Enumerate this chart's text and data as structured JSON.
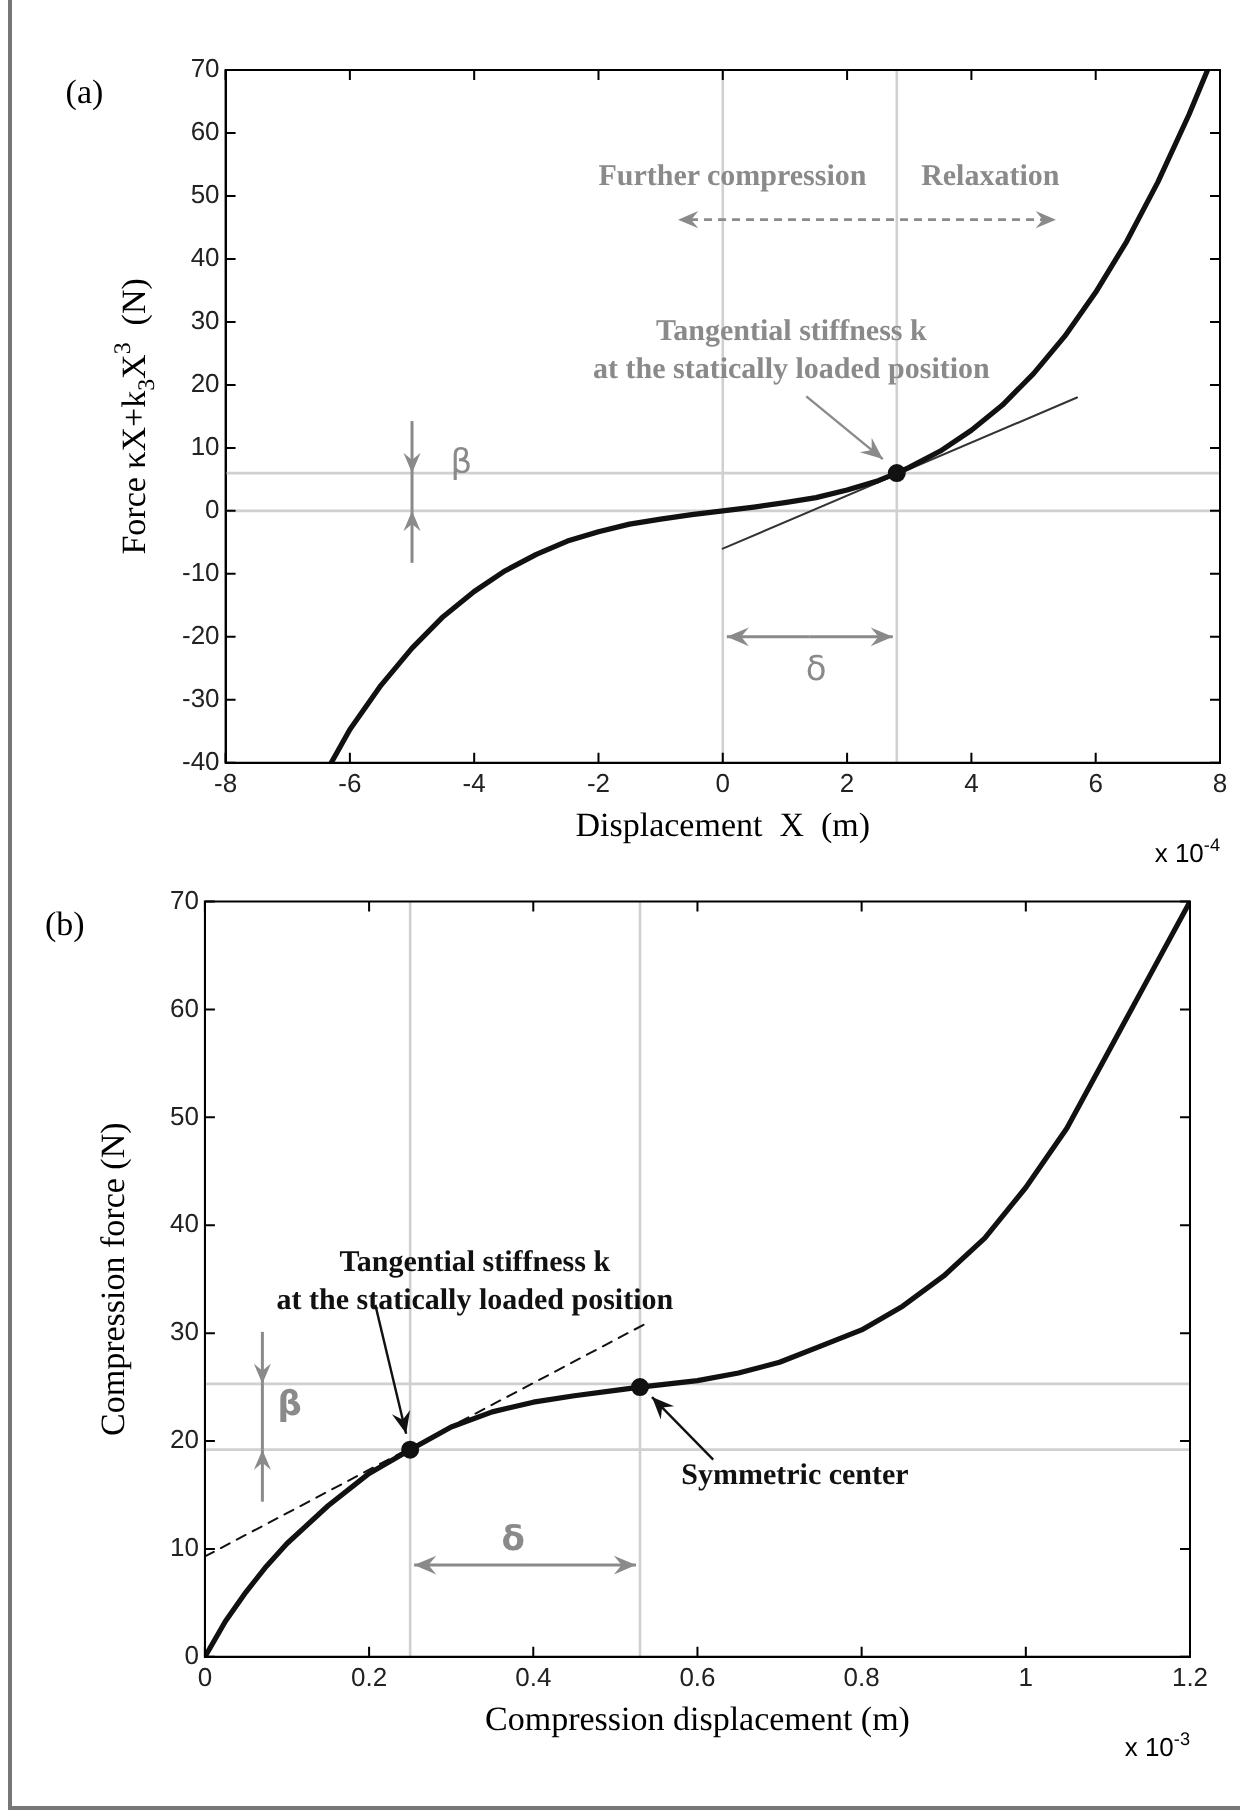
{
  "chart_data": [
    {
      "type": "line",
      "title": "(a)",
      "xlabel": "Displacement  X  (m)",
      "ylabel": "Force κX+k$_{3}$X$^{3}$  (N)",
      "xlim": [
        -8,
        8
      ],
      "ylim": [
        -40,
        70
      ],
      "xticks": [
        -8,
        -6,
        -4,
        -2,
        0,
        2,
        4,
        6,
        8
      ],
      "yticks": [
        -40,
        -30,
        -20,
        -10,
        0,
        10,
        20,
        30,
        40,
        50,
        60,
        70
      ],
      "series": [
        {
          "type": "line",
          "color": "#111111",
          "marker": "none",
          "x": [
            -6.3,
            -6,
            -5.5,
            -5,
            -4.5,
            -4,
            -3.5,
            -3,
            -2.5,
            -2,
            -1.5,
            -1,
            -0.5,
            0,
            0.5,
            1,
            1.5,
            2,
            2.5,
            2.8,
            3,
            3.5,
            4,
            4.5,
            5,
            5.5,
            6,
            6.5,
            7,
            7.5,
            7.8
          ],
          "values": [
            -40,
            -34.7,
            -27.7,
            -21.8,
            -16.8,
            -12.8,
            -9.5,
            -6.9,
            -4.8,
            -3.3,
            -2.1,
            -1.3,
            -0.6,
            0,
            0.6,
            1.3,
            2.1,
            3.3,
            4.8,
            6,
            6.9,
            9.5,
            12.8,
            16.8,
            21.8,
            27.7,
            34.7,
            42.8,
            52.2,
            62.9,
            70
          ]
        },
        {
          "type": "line",
          "color": "#333333",
          "marker": "none",
          "x": [
            0,
            5.7
          ],
          "values": [
            -6,
            18
          ]
        },
        {
          "type": "scatter",
          "marker": "circle",
          "color": "#111111",
          "x": [
            2.8
          ],
          "values": [
            6
          ]
        }
      ],
      "ref_lines": [
        {
          "axis": "y",
          "value": 6,
          "color": "#d0d0d0"
        },
        {
          "axis": "y",
          "value": 0,
          "color": "#d0d0d0"
        },
        {
          "axis": "x",
          "value": 0,
          "color": "#d0d0d0"
        },
        {
          "axis": "x",
          "value": 2.8,
          "color": "#d0d0d0"
        }
      ],
      "annotations": [
        {
          "text": "β",
          "x": -5,
          "y": 6
        },
        {
          "text": "δ",
          "x": 2.8,
          "y": -20
        },
        "Further compression",
        "Relaxation",
        {
          "text": "Tangential stiffness k\nat the statically loaded position",
          "x": 2.8,
          "y": 6
        },
        "x 10$^{-4}$"
      ]
    },
    {
      "type": "line",
      "title": "(b)",
      "xlabel": "Compression displacement (m)",
      "ylabel": "Compression force (N)",
      "xlim": [
        0,
        1.2
      ],
      "ylim": [
        0,
        70
      ],
      "xticks": [
        0,
        0.2,
        0.4,
        0.6,
        0.8,
        1,
        1.2
      ],
      "yticks": [
        0,
        10,
        20,
        30,
        40,
        50,
        60,
        70
      ],
      "series": [
        {
          "type": "line",
          "color": "#111111",
          "marker": "none",
          "x": [
            0,
            0.025,
            0.05,
            0.075,
            0.1,
            0.15,
            0.2,
            0.25,
            0.3,
            0.35,
            0.4,
            0.45,
            0.5,
            0.53,
            0.6,
            0.65,
            0.7,
            0.75,
            0.8,
            0.85,
            0.9,
            0.95,
            1,
            1.05,
            1.1,
            1.15,
            1.2
          ],
          "values": [
            0,
            3.3,
            6,
            8.4,
            10.5,
            14,
            17,
            19.2,
            21.3,
            22.7,
            23.6,
            24.2,
            24.7,
            25,
            25.6,
            26.3,
            27.3,
            28.8,
            30.3,
            32.5,
            35.3,
            38.8,
            43.5,
            49,
            56,
            63,
            70
          ]
        },
        {
          "type": "line",
          "color": "#111111",
          "marker": "none",
          "line_style": "dashed",
          "x": [
            0,
            0.54
          ],
          "values": [
            9.3,
            31
          ]
        },
        {
          "type": "scatter",
          "marker": "circle",
          "color": "#111111",
          "x": [
            0.25,
            0.53
          ],
          "values": [
            19.2,
            25
          ]
        }
      ],
      "ref_lines": [
        {
          "axis": "y",
          "value": 25.3,
          "color": "#d0d0d0"
        },
        {
          "axis": "y",
          "value": 19.2,
          "color": "#d0d0d0"
        },
        {
          "axis": "x",
          "value": 0.25,
          "color": "#d0d0d0"
        },
        {
          "axis": "x",
          "value": 0.53,
          "color": "#d0d0d0"
        }
      ],
      "annotations": [
        {
          "text": "β",
          "x": 0.07,
          "y": 25.3
        },
        {
          "text": "δ",
          "x": 0.53,
          "y": 8.5
        },
        {
          "text": "Tangential stiffness k\nat the statically loaded position",
          "x": 0.25,
          "y": 19.2
        },
        {
          "text": "Symmetric center",
          "x": 0.53,
          "y": 25
        },
        "x 10$^{-3}$"
      ]
    }
  ]
}
